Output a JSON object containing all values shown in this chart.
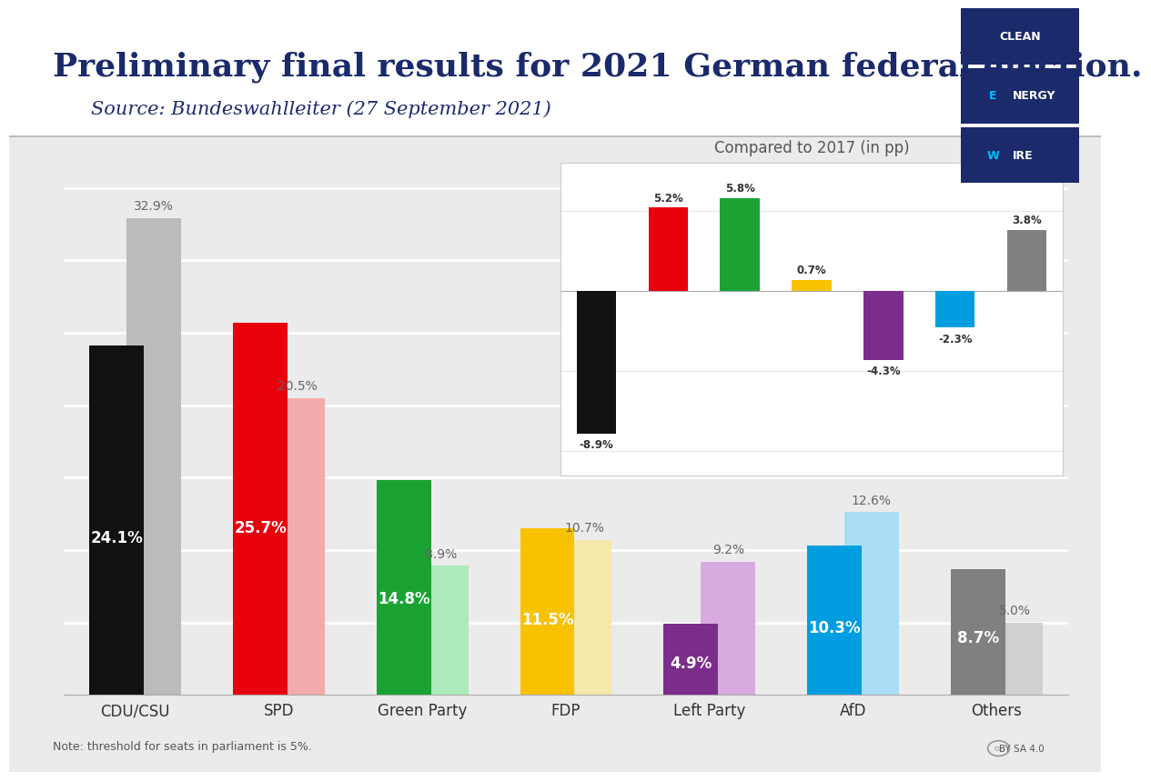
{
  "title": "Preliminary final results for 2021 German federal election.",
  "subtitle": "Source: Bundeswahlleiter (27 September 2021)",
  "note": "Note: threshold for seats in parliament is 5%.",
  "categories": [
    "CDU/CSU",
    "SPD",
    "Green Party",
    "FDP",
    "Left Party",
    "AfD",
    "Others"
  ],
  "current_values": [
    24.1,
    25.7,
    14.8,
    11.5,
    4.9,
    10.3,
    8.7
  ],
  "prev_values": [
    32.9,
    20.5,
    8.9,
    10.7,
    9.2,
    12.6,
    5.0
  ],
  "current_colors": [
    "#111111",
    "#E8000D",
    "#1AA333",
    "#F8C200",
    "#7B2D8B",
    "#009EE0",
    "#808080"
  ],
  "prev_colors": [
    "#BBBBBB",
    "#F4AAAA",
    "#AAEABB",
    "#F5E8AA",
    "#D8AAE0",
    "#AADDF5",
    "#D0D0D0"
  ],
  "inset_changes": [
    -8.9,
    5.2,
    5.8,
    0.7,
    -4.3,
    -2.3,
    3.8
  ],
  "inset_colors": [
    "#111111",
    "#E8000D",
    "#1AA333",
    "#F8C200",
    "#7B2D8B",
    "#009EE0",
    "#808080"
  ],
  "inset_title": "Compared to 2017 (in pp)",
  "title_color": "#1B2A6B",
  "subtitle_color": "#1B2A6B",
  "bg_color": "#EBEBEB",
  "plot_bg_color": "#EBEBEB",
  "header_bg_color": "#FFFFFF",
  "grid_color": "#FFFFFF",
  "logo_bg": "#1B2A6B",
  "logo_cyan": "#00BFFF",
  "label_fontsize": 12,
  "title_fontsize": 26,
  "subtitle_fontsize": 15
}
